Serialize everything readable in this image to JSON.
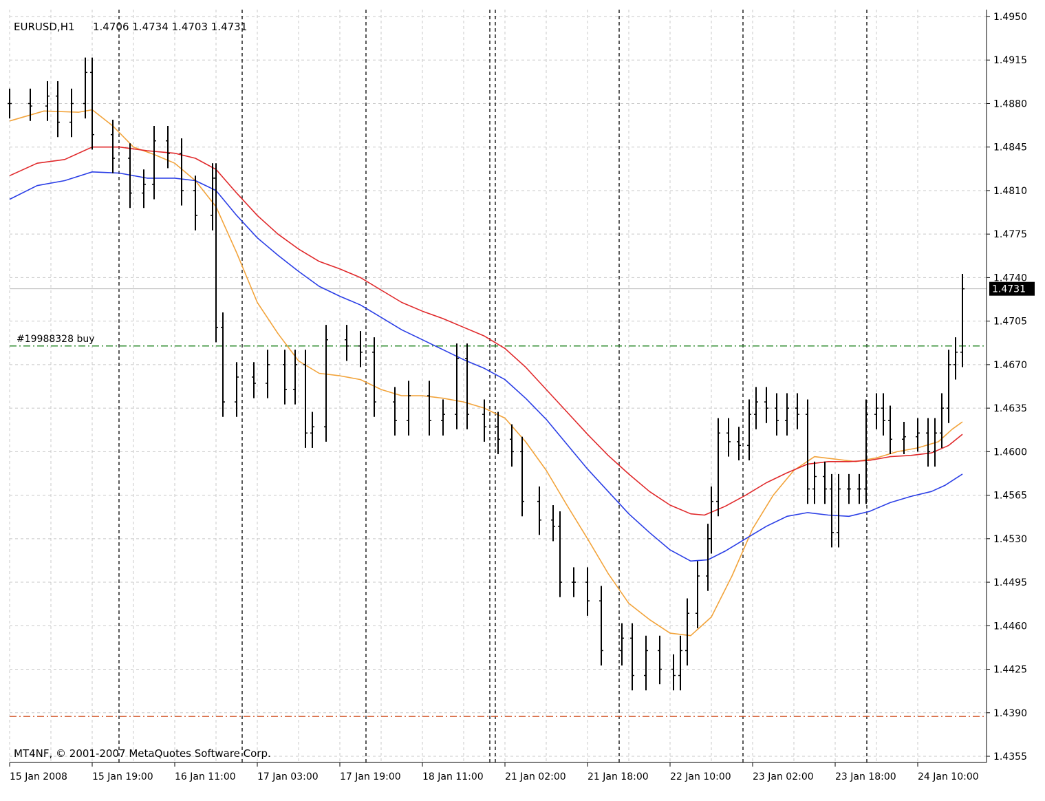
{
  "header": {
    "symbol_label": "EURUSD,H1",
    "ohlc_label": "1.4706 1.4734 1.4703 1.4731"
  },
  "footer": {
    "copyright": "MT4NF, © 2001-2007 MetaQuotes Software Corp."
  },
  "colors": {
    "background": "#ffffff",
    "grid": "#c8c8c8",
    "bars": "#000000",
    "ma_fast": "#f2a33a",
    "ma_mid": "#e0282a",
    "ma_slow": "#2a3ee6",
    "buy_line": "#2e8b2e",
    "stop_line": "#d2572a",
    "current_price_line": "#b8b8b8",
    "price_tag_bg": "#000000",
    "price_tag_text": "#ffffff"
  },
  "chart_data": {
    "type": "line",
    "title": "EURUSD,H1",
    "subtitle": "1.4706 1.4734 1.4703 1.4731",
    "ylim": [
      1.4355,
      1.495
    ],
    "grid": true,
    "y_ticks": [
      "1.4950",
      "1.4915",
      "1.4880",
      "1.4845",
      "1.4810",
      "1.4775",
      "1.4740",
      "1.4705",
      "1.4670",
      "1.4635",
      "1.4600",
      "1.4565",
      "1.4530",
      "1.4495",
      "1.4460",
      "1.4425",
      "1.4390",
      "1.4355"
    ],
    "x_ticks": [
      "15 Jan 2008",
      "15 Jan 19:00",
      "16 Jan 11:00",
      "17 Jan 03:00",
      "17 Jan 19:00",
      "18 Jan 11:00",
      "21 Jan 02:00",
      "21 Jan 18:00",
      "22 Jan 10:00",
      "23 Jan 02:00",
      "23 Jan 18:00",
      "24 Jan 10:00"
    ],
    "current_price": 1.4731,
    "current_price_label": "1.4731",
    "horizontal_lines": [
      {
        "name": "order",
        "label": "#19988328 buy",
        "value": 1.4685,
        "style": "dash-dot",
        "color": "#2e8b2e"
      },
      {
        "name": "stop",
        "label": "",
        "value": 1.4387,
        "style": "dash-dot",
        "color": "#d2572a"
      }
    ],
    "day_separators": [
      "15 Jan 19:00",
      "16 Jan 11:00",
      "17 Jan 19:00",
      "18 Jan 11:00",
      "21 Jan 18:00",
      "22 Jan 10:00",
      "23 Jan 18:00"
    ],
    "series": [
      {
        "name": "",
        "role": "ma_fast",
        "color": "#f2a33a",
        "points": [
          [
            0,
            1.4866
          ],
          [
            50,
            1.4874
          ],
          [
            100,
            1.4873
          ],
          [
            120,
            1.4875
          ],
          [
            150,
            1.4862
          ],
          [
            180,
            1.4845
          ],
          [
            210,
            1.4839
          ],
          [
            240,
            1.4832
          ],
          [
            270,
            1.4818
          ],
          [
            300,
            1.4797
          ],
          [
            330,
            1.476
          ],
          [
            360,
            1.472
          ],
          [
            390,
            1.4695
          ],
          [
            420,
            1.4673
          ],
          [
            450,
            1.4663
          ],
          [
            480,
            1.4661
          ],
          [
            510,
            1.4658
          ],
          [
            540,
            1.465
          ],
          [
            570,
            1.4645
          ],
          [
            600,
            1.4645
          ],
          [
            630,
            1.4643
          ],
          [
            660,
            1.464
          ],
          [
            690,
            1.4635
          ],
          [
            720,
            1.4627
          ],
          [
            750,
            1.4608
          ],
          [
            780,
            1.4585
          ],
          [
            810,
            1.4557
          ],
          [
            840,
            1.453
          ],
          [
            870,
            1.4502
          ],
          [
            900,
            1.4478
          ],
          [
            930,
            1.4465
          ],
          [
            960,
            1.4454
          ],
          [
            990,
            1.4452
          ],
          [
            1020,
            1.4467
          ],
          [
            1050,
            1.45
          ],
          [
            1080,
            1.4538
          ],
          [
            1110,
            1.4565
          ],
          [
            1140,
            1.4585
          ],
          [
            1170,
            1.4596
          ],
          [
            1200,
            1.4594
          ],
          [
            1230,
            1.4592
          ],
          [
            1260,
            1.4595
          ],
          [
            1290,
            1.46
          ],
          [
            1320,
            1.4603
          ],
          [
            1350,
            1.4608
          ],
          [
            1370,
            1.4618
          ],
          [
            1385,
            1.4624
          ]
        ]
      },
      {
        "name": "",
        "role": "ma_mid",
        "color": "#e0282a",
        "points": [
          [
            0,
            1.4822
          ],
          [
            40,
            1.4832
          ],
          [
            80,
            1.4835
          ],
          [
            120,
            1.4845
          ],
          [
            160,
            1.4845
          ],
          [
            200,
            1.4842
          ],
          [
            240,
            1.484
          ],
          [
            270,
            1.4836
          ],
          [
            300,
            1.4827
          ],
          [
            330,
            1.4808
          ],
          [
            360,
            1.479
          ],
          [
            390,
            1.4775
          ],
          [
            420,
            1.4763
          ],
          [
            450,
            1.4753
          ],
          [
            480,
            1.4747
          ],
          [
            510,
            1.474
          ],
          [
            540,
            1.473
          ],
          [
            570,
            1.472
          ],
          [
            600,
            1.4713
          ],
          [
            630,
            1.4707
          ],
          [
            660,
            1.47
          ],
          [
            690,
            1.4693
          ],
          [
            720,
            1.4683
          ],
          [
            750,
            1.4668
          ],
          [
            780,
            1.465
          ],
          [
            810,
            1.4632
          ],
          [
            840,
            1.4614
          ],
          [
            870,
            1.4597
          ],
          [
            900,
            1.4582
          ],
          [
            930,
            1.4568
          ],
          [
            960,
            1.4557
          ],
          [
            990,
            1.455
          ],
          [
            1010,
            1.4549
          ],
          [
            1040,
            1.4556
          ],
          [
            1070,
            1.4565
          ],
          [
            1100,
            1.4575
          ],
          [
            1130,
            1.4583
          ],
          [
            1160,
            1.459
          ],
          [
            1190,
            1.4592
          ],
          [
            1220,
            1.4592
          ],
          [
            1250,
            1.4593
          ],
          [
            1280,
            1.4596
          ],
          [
            1310,
            1.4597
          ],
          [
            1340,
            1.4599
          ],
          [
            1365,
            1.4605
          ],
          [
            1385,
            1.4614
          ]
        ]
      },
      {
        "name": "",
        "role": "ma_slow",
        "color": "#2a3ee6",
        "points": [
          [
            0,
            1.4803
          ],
          [
            40,
            1.4814
          ],
          [
            80,
            1.4818
          ],
          [
            120,
            1.4825
          ],
          [
            160,
            1.4824
          ],
          [
            200,
            1.482
          ],
          [
            240,
            1.482
          ],
          [
            270,
            1.4818
          ],
          [
            300,
            1.481
          ],
          [
            330,
            1.479
          ],
          [
            360,
            1.4772
          ],
          [
            390,
            1.4758
          ],
          [
            420,
            1.4745
          ],
          [
            450,
            1.4733
          ],
          [
            480,
            1.4725
          ],
          [
            510,
            1.4718
          ],
          [
            540,
            1.4708
          ],
          [
            570,
            1.4698
          ],
          [
            600,
            1.469
          ],
          [
            630,
            1.4682
          ],
          [
            660,
            1.4674
          ],
          [
            690,
            1.4667
          ],
          [
            720,
            1.4658
          ],
          [
            750,
            1.4643
          ],
          [
            780,
            1.4626
          ],
          [
            810,
            1.4606
          ],
          [
            840,
            1.4586
          ],
          [
            870,
            1.4568
          ],
          [
            900,
            1.455
          ],
          [
            930,
            1.4535
          ],
          [
            960,
            1.4521
          ],
          [
            990,
            1.4512
          ],
          [
            1015,
            1.4513
          ],
          [
            1040,
            1.452
          ],
          [
            1070,
            1.453
          ],
          [
            1100,
            1.454
          ],
          [
            1130,
            1.4548
          ],
          [
            1160,
            1.4551
          ],
          [
            1190,
            1.4549
          ],
          [
            1220,
            1.4548
          ],
          [
            1250,
            1.4552
          ],
          [
            1280,
            1.4559
          ],
          [
            1310,
            1.4564
          ],
          [
            1340,
            1.4568
          ],
          [
            1360,
            1.4573
          ],
          [
            1385,
            1.4582
          ]
        ]
      },
      {
        "name": "",
        "role": "price_bars",
        "color": "#000000",
        "points": [
          [
            0,
            1.488
          ],
          [
            30,
            1.4878
          ],
          [
            55,
            1.4886
          ],
          [
            70,
            1.4865
          ],
          [
            90,
            1.488
          ],
          [
            110,
            1.4905
          ],
          [
            120,
            1.4855
          ],
          [
            150,
            1.4836
          ],
          [
            175,
            1.4808
          ],
          [
            195,
            1.4815
          ],
          [
            210,
            1.485
          ],
          [
            230,
            1.484
          ],
          [
            250,
            1.481
          ],
          [
            270,
            1.479
          ],
          [
            295,
            1.482
          ],
          [
            300,
            1.47
          ],
          [
            310,
            1.464
          ],
          [
            330,
            1.466
          ],
          [
            355,
            1.4655
          ],
          [
            375,
            1.467
          ],
          [
            400,
            1.465
          ],
          [
            415,
            1.467
          ],
          [
            430,
            1.4615
          ],
          [
            440,
            1.462
          ],
          [
            460,
            1.469
          ],
          [
            490,
            1.4685
          ],
          [
            510,
            1.468
          ],
          [
            530,
            1.464
          ],
          [
            560,
            1.4625
          ],
          [
            580,
            1.4645
          ],
          [
            610,
            1.4625
          ],
          [
            630,
            1.463
          ],
          [
            650,
            1.4675
          ],
          [
            665,
            1.463
          ],
          [
            690,
            1.462
          ],
          [
            710,
            1.461
          ],
          [
            730,
            1.46
          ],
          [
            745,
            1.456
          ],
          [
            770,
            1.4545
          ],
          [
            790,
            1.454
          ],
          [
            800,
            1.4495
          ],
          [
            820,
            1.4495
          ],
          [
            840,
            1.448
          ],
          [
            860,
            1.444
          ],
          [
            890,
            1.445
          ],
          [
            905,
            1.442
          ],
          [
            925,
            1.444
          ],
          [
            945,
            1.4425
          ],
          [
            965,
            1.442
          ],
          [
            975,
            1.444
          ],
          [
            985,
            1.447
          ],
          [
            1000,
            1.45
          ],
          [
            1015,
            1.453
          ],
          [
            1020,
            1.456
          ],
          [
            1030,
            1.4615
          ],
          [
            1045,
            1.4608
          ],
          [
            1060,
            1.4605
          ],
          [
            1075,
            1.463
          ],
          [
            1085,
            1.464
          ],
          [
            1100,
            1.4635
          ],
          [
            1115,
            1.4625
          ],
          [
            1130,
            1.4635
          ],
          [
            1145,
            1.463
          ],
          [
            1160,
            1.457
          ],
          [
            1170,
            1.458
          ],
          [
            1185,
            1.457
          ],
          [
            1195,
            1.4535
          ],
          [
            1205,
            1.457
          ],
          [
            1220,
            1.457
          ],
          [
            1235,
            1.457
          ],
          [
            1245,
            1.463
          ],
          [
            1260,
            1.4635
          ],
          [
            1270,
            1.4625
          ],
          [
            1280,
            1.461
          ],
          [
            1300,
            1.4612
          ],
          [
            1320,
            1.4615
          ],
          [
            1335,
            1.46
          ],
          [
            1345,
            1.4615
          ],
          [
            1355,
            1.4635
          ],
          [
            1365,
            1.467
          ],
          [
            1375,
            1.468
          ],
          [
            1385,
            1.4731
          ]
        ]
      }
    ]
  }
}
